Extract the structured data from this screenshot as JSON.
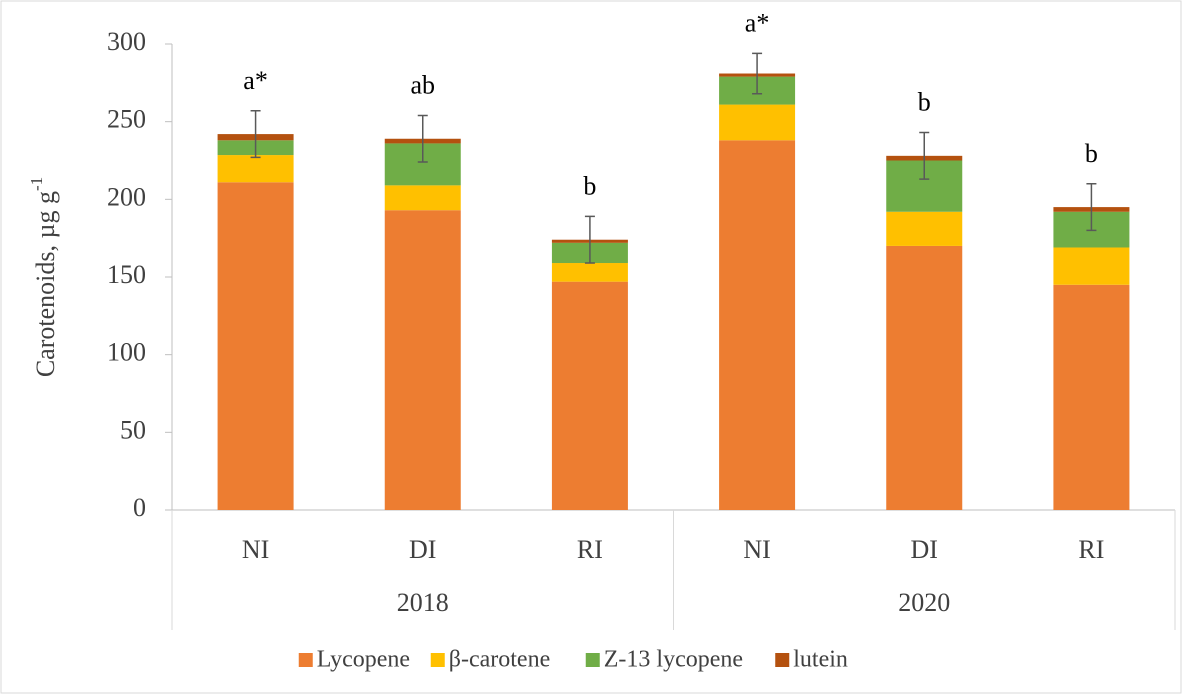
{
  "chart_data": {
    "type": "stacked_bar",
    "ylabel": {
      "text": "Carotenoids, µg g",
      "sup": "-1"
    },
    "categories": [
      "NI",
      "DI",
      "RI",
      "NI",
      "DI",
      "RI"
    ],
    "groups": [
      "2018",
      "2020"
    ],
    "series": [
      {
        "name": "Lycopene",
        "color": "#ED7D31",
        "values": [
          211,
          193,
          147,
          238,
          170,
          145
        ]
      },
      {
        "name": "β-carotene",
        "color": "#FFC000",
        "values": [
          17.5,
          16,
          12,
          23,
          22,
          24
        ]
      },
      {
        "name": "Z-13 lycopene",
        "color": "#70AD47",
        "values": [
          9.5,
          27,
          13,
          18,
          33,
          23
        ]
      },
      {
        "name": "lutein",
        "color": "#B4510F",
        "values": [
          4,
          3,
          2,
          2,
          3,
          3
        ]
      }
    ],
    "errors": [
      15,
      15,
      15,
      13,
      15,
      15
    ],
    "annotations": [
      "a*",
      "ab",
      "b",
      "a*",
      "b",
      "b"
    ],
    "ylim": [
      0,
      300
    ],
    "yticks": [
      0,
      50,
      100,
      150,
      200,
      250,
      300
    ]
  }
}
